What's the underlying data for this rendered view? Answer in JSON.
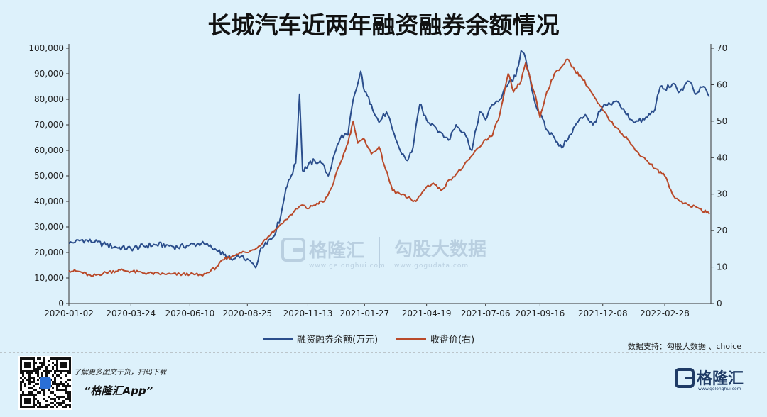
{
  "title": "长城汽车近两年融资融券余额情况",
  "chart_data": {
    "type": "line",
    "x_ticks": [
      "2020-01-02",
      "2020-03-24",
      "2020-06-10",
      "2020-08-25",
      "2020-11-13",
      "2021-01-27",
      "2021-04-19",
      "2021-07-06",
      "2021-09-16",
      "2021-12-08",
      "2022-02-28"
    ],
    "y_left_ticks": [
      "100,000",
      "90,000",
      "80,000",
      "70,000",
      "60,000",
      "50,000",
      "40,000",
      "30,000",
      "20,000",
      "10,000",
      "0"
    ],
    "y_right_ticks": [
      "70",
      "60",
      "50",
      "40",
      "30",
      "20",
      "10",
      "0"
    ],
    "y_left_range": [
      0,
      100000
    ],
    "y_right_range": [
      0,
      70
    ],
    "x_range": [
      "2020-01-02",
      "2022-04-30"
    ],
    "grid": false,
    "legend_position": "bottom",
    "series": [
      {
        "name": "融资融券余额(万元)",
        "axis": "left",
        "color": "#2b4e8c",
        "points": [
          [
            "2020-01-02",
            23500
          ],
          [
            "2020-01-10",
            24000
          ],
          [
            "2020-01-20",
            25000
          ],
          [
            "2020-02-05",
            24000
          ],
          [
            "2020-02-20",
            23000
          ],
          [
            "2020-03-05",
            22000
          ],
          [
            "2020-03-24",
            21500
          ],
          [
            "2020-04-10",
            22500
          ],
          [
            "2020-04-25",
            23000
          ],
          [
            "2020-05-10",
            23000
          ],
          [
            "2020-05-25",
            22000
          ],
          [
            "2020-06-10",
            23000
          ],
          [
            "2020-06-25",
            23500
          ],
          [
            "2020-07-05",
            22500
          ],
          [
            "2020-07-15",
            21000
          ],
          [
            "2020-07-25",
            19000
          ],
          [
            "2020-08-05",
            17000
          ],
          [
            "2020-08-15",
            18000
          ],
          [
            "2020-08-25",
            17500
          ],
          [
            "2020-09-05",
            14000
          ],
          [
            "2020-09-10",
            20000
          ],
          [
            "2020-09-18",
            24000
          ],
          [
            "2020-09-28",
            26000
          ],
          [
            "2020-10-08",
            34000
          ],
          [
            "2020-10-15",
            45000
          ],
          [
            "2020-10-22",
            50000
          ],
          [
            "2020-10-28",
            55000
          ],
          [
            "2020-11-02",
            82000
          ],
          [
            "2020-11-06",
            52000
          ],
          [
            "2020-11-13",
            54000
          ],
          [
            "2020-11-22",
            56000
          ],
          [
            "2020-12-01",
            55000
          ],
          [
            "2020-12-10",
            50000
          ],
          [
            "2020-12-20",
            60000
          ],
          [
            "2020-12-28",
            66000
          ],
          [
            "2021-01-05",
            66000
          ],
          [
            "2021-01-12",
            80000
          ],
          [
            "2021-01-18",
            86000
          ],
          [
            "2021-01-22",
            91000
          ],
          [
            "2021-01-27",
            83000
          ],
          [
            "2021-02-05",
            78000
          ],
          [
            "2021-02-15",
            71000
          ],
          [
            "2021-02-25",
            75000
          ],
          [
            "2021-03-05",
            68000
          ],
          [
            "2021-03-15",
            60000
          ],
          [
            "2021-03-25",
            56000
          ],
          [
            "2021-04-01",
            61000
          ],
          [
            "2021-04-10",
            78000
          ],
          [
            "2021-04-19",
            72000
          ],
          [
            "2021-04-28",
            70000
          ],
          [
            "2021-05-08",
            67000
          ],
          [
            "2021-05-18",
            64000
          ],
          [
            "2021-05-28",
            70000
          ],
          [
            "2021-06-08",
            67000
          ],
          [
            "2021-06-18",
            60000
          ],
          [
            "2021-06-28",
            75000
          ],
          [
            "2021-07-06",
            72000
          ],
          [
            "2021-07-15",
            78000
          ],
          [
            "2021-07-25",
            80000
          ],
          [
            "2021-08-05",
            86000
          ],
          [
            "2021-08-15",
            89000
          ],
          [
            "2021-08-22",
            99000
          ],
          [
            "2021-08-28",
            96000
          ],
          [
            "2021-09-05",
            84000
          ],
          [
            "2021-09-10",
            78000
          ],
          [
            "2021-09-16",
            74000
          ],
          [
            "2021-09-25",
            68000
          ],
          [
            "2021-10-05",
            65000
          ],
          [
            "2021-10-15",
            61000
          ],
          [
            "2021-10-25",
            66000
          ],
          [
            "2021-11-05",
            71000
          ],
          [
            "2021-11-15",
            74000
          ],
          [
            "2021-11-25",
            70000
          ],
          [
            "2021-12-08",
            77000
          ],
          [
            "2021-12-18",
            78000
          ],
          [
            "2021-12-28",
            79000
          ],
          [
            "2022-01-08",
            74000
          ],
          [
            "2022-01-20",
            71000
          ],
          [
            "2022-02-01",
            72000
          ],
          [
            "2022-02-15",
            76000
          ],
          [
            "2022-02-22",
            85000
          ],
          [
            "2022-02-28",
            84000
          ],
          [
            "2022-03-10",
            86000
          ],
          [
            "2022-03-20",
            83000
          ],
          [
            "2022-04-01",
            87000
          ],
          [
            "2022-04-10",
            82000
          ],
          [
            "2022-04-20",
            85000
          ],
          [
            "2022-04-28",
            81000
          ]
        ]
      },
      {
        "name": "收盘价(右)",
        "axis": "right",
        "color": "#b94a2a",
        "points": [
          [
            "2020-01-02",
            9.0
          ],
          [
            "2020-01-15",
            8.8
          ],
          [
            "2020-02-01",
            7.5
          ],
          [
            "2020-02-20",
            8.5
          ],
          [
            "2020-03-10",
            9.2
          ],
          [
            "2020-03-24",
            8.8
          ],
          [
            "2020-04-15",
            8.3
          ],
          [
            "2020-05-10",
            8.0
          ],
          [
            "2020-06-10",
            8.0
          ],
          [
            "2020-06-25",
            7.8
          ],
          [
            "2020-07-05",
            8.5
          ],
          [
            "2020-07-15",
            10.0
          ],
          [
            "2020-07-25",
            12.0
          ],
          [
            "2020-08-05",
            13.0
          ],
          [
            "2020-08-15",
            14.0
          ],
          [
            "2020-08-25",
            14.0
          ],
          [
            "2020-09-05",
            15.0
          ],
          [
            "2020-09-15",
            17.0
          ],
          [
            "2020-09-25",
            19.0
          ],
          [
            "2020-10-05",
            21.0
          ],
          [
            "2020-10-15",
            23.0
          ],
          [
            "2020-10-25",
            25.0
          ],
          [
            "2020-11-05",
            27.0
          ],
          [
            "2020-11-13",
            26.0
          ],
          [
            "2020-11-25",
            27.5
          ],
          [
            "2020-12-05",
            28.0
          ],
          [
            "2020-12-15",
            32.0
          ],
          [
            "2020-12-25",
            38.0
          ],
          [
            "2021-01-05",
            44.0
          ],
          [
            "2021-01-12",
            50.0
          ],
          [
            "2021-01-18",
            44.0
          ],
          [
            "2021-01-27",
            45.0
          ],
          [
            "2021-02-05",
            41.0
          ],
          [
            "2021-02-15",
            43.0
          ],
          [
            "2021-02-22",
            38.0
          ],
          [
            "2021-03-05",
            31.0
          ],
          [
            "2021-03-15",
            30.0
          ],
          [
            "2021-03-25",
            29.0
          ],
          [
            "2021-04-05",
            28.0
          ],
          [
            "2021-04-19",
            32.0
          ],
          [
            "2021-04-28",
            33.0
          ],
          [
            "2021-05-08",
            31.0
          ],
          [
            "2021-05-20",
            34.0
          ],
          [
            "2021-06-05",
            37.0
          ],
          [
            "2021-06-20",
            41.0
          ],
          [
            "2021-07-06",
            45.0
          ],
          [
            "2021-07-15",
            46.0
          ],
          [
            "2021-07-25",
            52.0
          ],
          [
            "2021-08-05",
            63.0
          ],
          [
            "2021-08-12",
            58.0
          ],
          [
            "2021-08-22",
            61.0
          ],
          [
            "2021-08-28",
            66.0
          ],
          [
            "2021-09-05",
            60.0
          ],
          [
            "2021-09-10",
            57.0
          ],
          [
            "2021-09-16",
            51.0
          ],
          [
            "2021-09-25",
            58.0
          ],
          [
            "2021-10-05",
            63.0
          ],
          [
            "2021-10-15",
            65.0
          ],
          [
            "2021-10-22",
            67.0
          ],
          [
            "2021-11-01",
            64.0
          ],
          [
            "2021-11-10",
            62.0
          ],
          [
            "2021-11-20",
            59.0
          ],
          [
            "2021-12-01",
            55.0
          ],
          [
            "2021-12-08",
            53.0
          ],
          [
            "2021-12-18",
            50.0
          ],
          [
            "2021-12-28",
            48.0
          ],
          [
            "2022-01-10",
            45.0
          ],
          [
            "2022-01-20",
            42.0
          ],
          [
            "2022-02-01",
            40.0
          ],
          [
            "2022-02-15",
            37.0
          ],
          [
            "2022-02-28",
            35.0
          ],
          [
            "2022-03-10",
            30.0
          ],
          [
            "2022-03-20",
            28.0
          ],
          [
            "2022-04-01",
            27.0
          ],
          [
            "2022-04-15",
            26.0
          ],
          [
            "2022-04-28",
            24.5
          ]
        ]
      }
    ]
  },
  "watermark": {
    "brand": "格隆汇",
    "brand_sub": "www.gelonghui.com",
    "site": "勾股大数据",
    "site_sub": "www.gogudata.com"
  },
  "source_text": "数据支持：勾股大数据 、choice",
  "footer": {
    "prompt": "了解更多图文干货，扫码下载",
    "app_name": "“格隆汇App”",
    "brand": "格隆汇",
    "brand_sub": "www.gelonghui.com",
    "qr_icon": "qr-code-icon"
  },
  "colors": {
    "background": "#ddf1fb",
    "margin_series": "#2b4e8c",
    "price_series": "#b94a2a",
    "brand": "#1f3b66"
  }
}
